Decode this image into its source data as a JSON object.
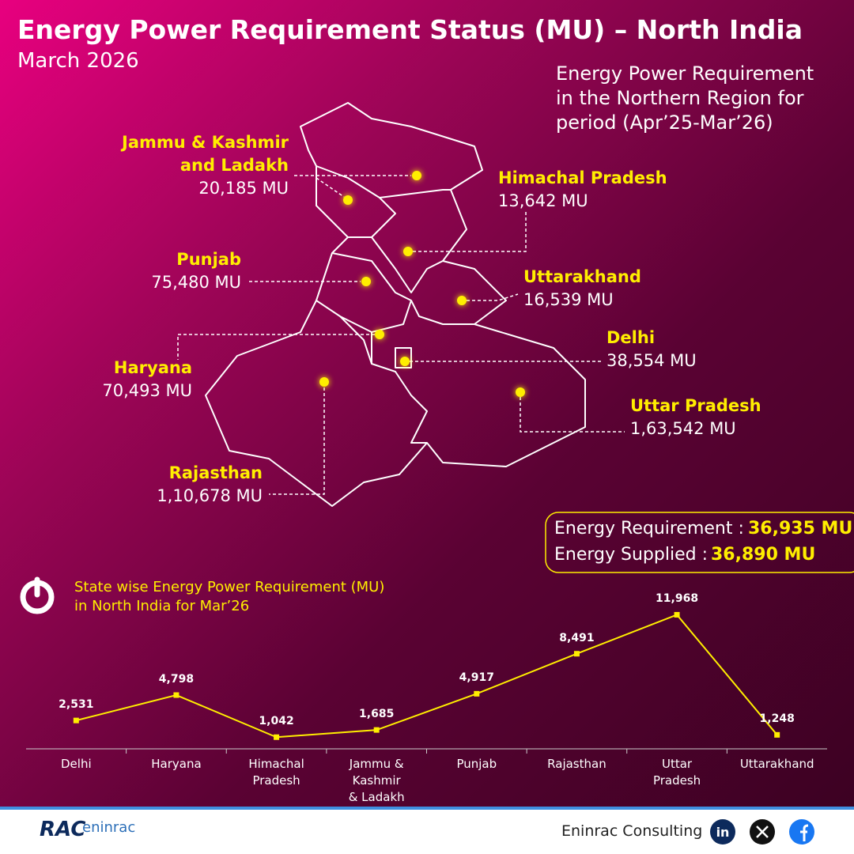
{
  "header": {
    "title": "Energy Power Requirement Status (MU) – North India",
    "subtitle": "March 2026"
  },
  "map": {
    "note": "Energy Power Requirement\nin the Northern Region for\nperiod (Apr’25-Mar’26)",
    "states": [
      {
        "name": "Jammu & Kashmir\nand Ladakh",
        "value": "20,185 MU"
      },
      {
        "name": "Himachal Pradesh",
        "value": "13,642 MU"
      },
      {
        "name": "Punjab",
        "value": "75,480 MU"
      },
      {
        "name": "Uttarakhand",
        "value": "16,539 MU"
      },
      {
        "name": "Delhi",
        "value": "38,554 MU"
      },
      {
        "name": "Uttar Pradesh",
        "value": "1,63,542 MU"
      },
      {
        "name": "Haryana",
        "value": "70,493 MU"
      },
      {
        "name": "Rajasthan",
        "value": "1,10,678 MU"
      }
    ]
  },
  "summary": {
    "rows": [
      {
        "label": "Energy Requirement :",
        "value": "36,935 MU"
      },
      {
        "label": "Energy Supplied :",
        "value": "36,890 MU"
      }
    ]
  },
  "chart_data": {
    "type": "line",
    "title": "State wise Energy Power Requirement (MU)\nin North India for Mar’26",
    "categories": [
      "Delhi",
      "Haryana",
      "Himachal\nPradesh",
      "Jammu &\nKashmir\n& Ladakh",
      "Punjab",
      "Rajasthan",
      "Uttar\nPradesh",
      "Uttarakhand"
    ],
    "values": [
      2531,
      4798,
      1042,
      1685,
      4917,
      8491,
      11968,
      1248
    ],
    "value_labels": [
      "2,531",
      "4,798",
      "1,042",
      "1,685",
      "4,917",
      "8,491",
      "11,968",
      "1,248"
    ],
    "color": "#ffee00",
    "ylim": [
      0,
      12000
    ]
  },
  "footer": {
    "logo": [
      "RAC",
      "eninrac"
    ],
    "company": "Eninrac Consulting"
  }
}
